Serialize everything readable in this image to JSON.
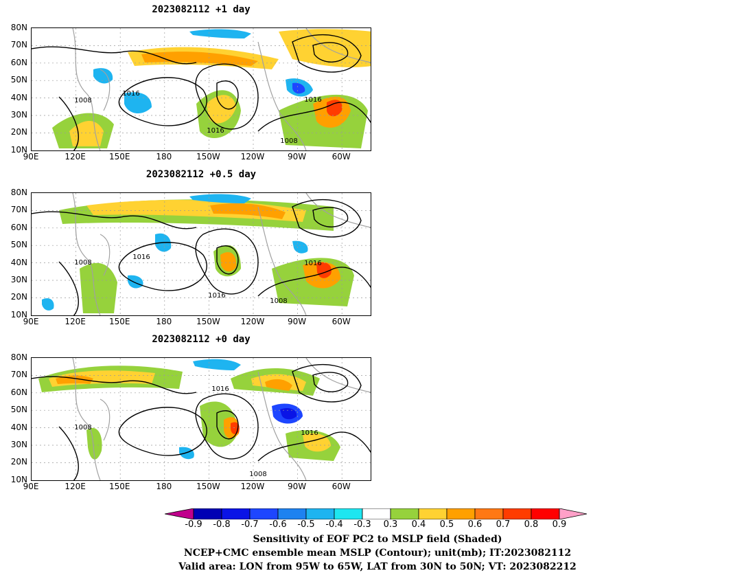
{
  "panels": [
    {
      "title": "2023082112 +1 day",
      "contour_labels": [
        "1008",
        "1016",
        "1016",
        "1016",
        "1008"
      ]
    },
    {
      "title": "2023082112 +0.5 day",
      "contour_labels": [
        "1008",
        "1016",
        "1016",
        "1016",
        "1008"
      ]
    },
    {
      "title": "2023082112 +0 day",
      "contour_labels": [
        "1008",
        "1016",
        "1016",
        "1008"
      ]
    }
  ],
  "lat_labels": [
    "80N",
    "70N",
    "60N",
    "50N",
    "40N",
    "30N",
    "20N",
    "10N"
  ],
  "lon_labels": [
    "90E",
    "120E",
    "150E",
    "180",
    "150W",
    "120W",
    "90W",
    "60W"
  ],
  "colorbar": {
    "labels": [
      "-0.9",
      "-0.8",
      "-0.7",
      "-0.6",
      "-0.5",
      "-0.4",
      "-0.3",
      "0.3",
      "0.4",
      "0.5",
      "0.6",
      "0.7",
      "0.8",
      "0.9"
    ],
    "colors": [
      "#c0008c",
      "#0000b4",
      "#0a14e6",
      "#1e46ff",
      "#1e82f0",
      "#1eb4f0",
      "#1ee6f0",
      "#ffffff",
      "#96d23c",
      "#ffd232",
      "#ffa000",
      "#ff7814",
      "#ff3c00",
      "#ff0000",
      "#ffa0c8"
    ]
  },
  "captions": [
    "Sensitivity of EOF PC2 to MSLP field (Shaded)",
    "NCEP+CMC ensemble mean MSLP (Contour); unit(mb); IT:2023082112",
    "Valid area: LON from 95W to 65W, LAT from 30N to 50N; VT: 2023082212"
  ]
}
